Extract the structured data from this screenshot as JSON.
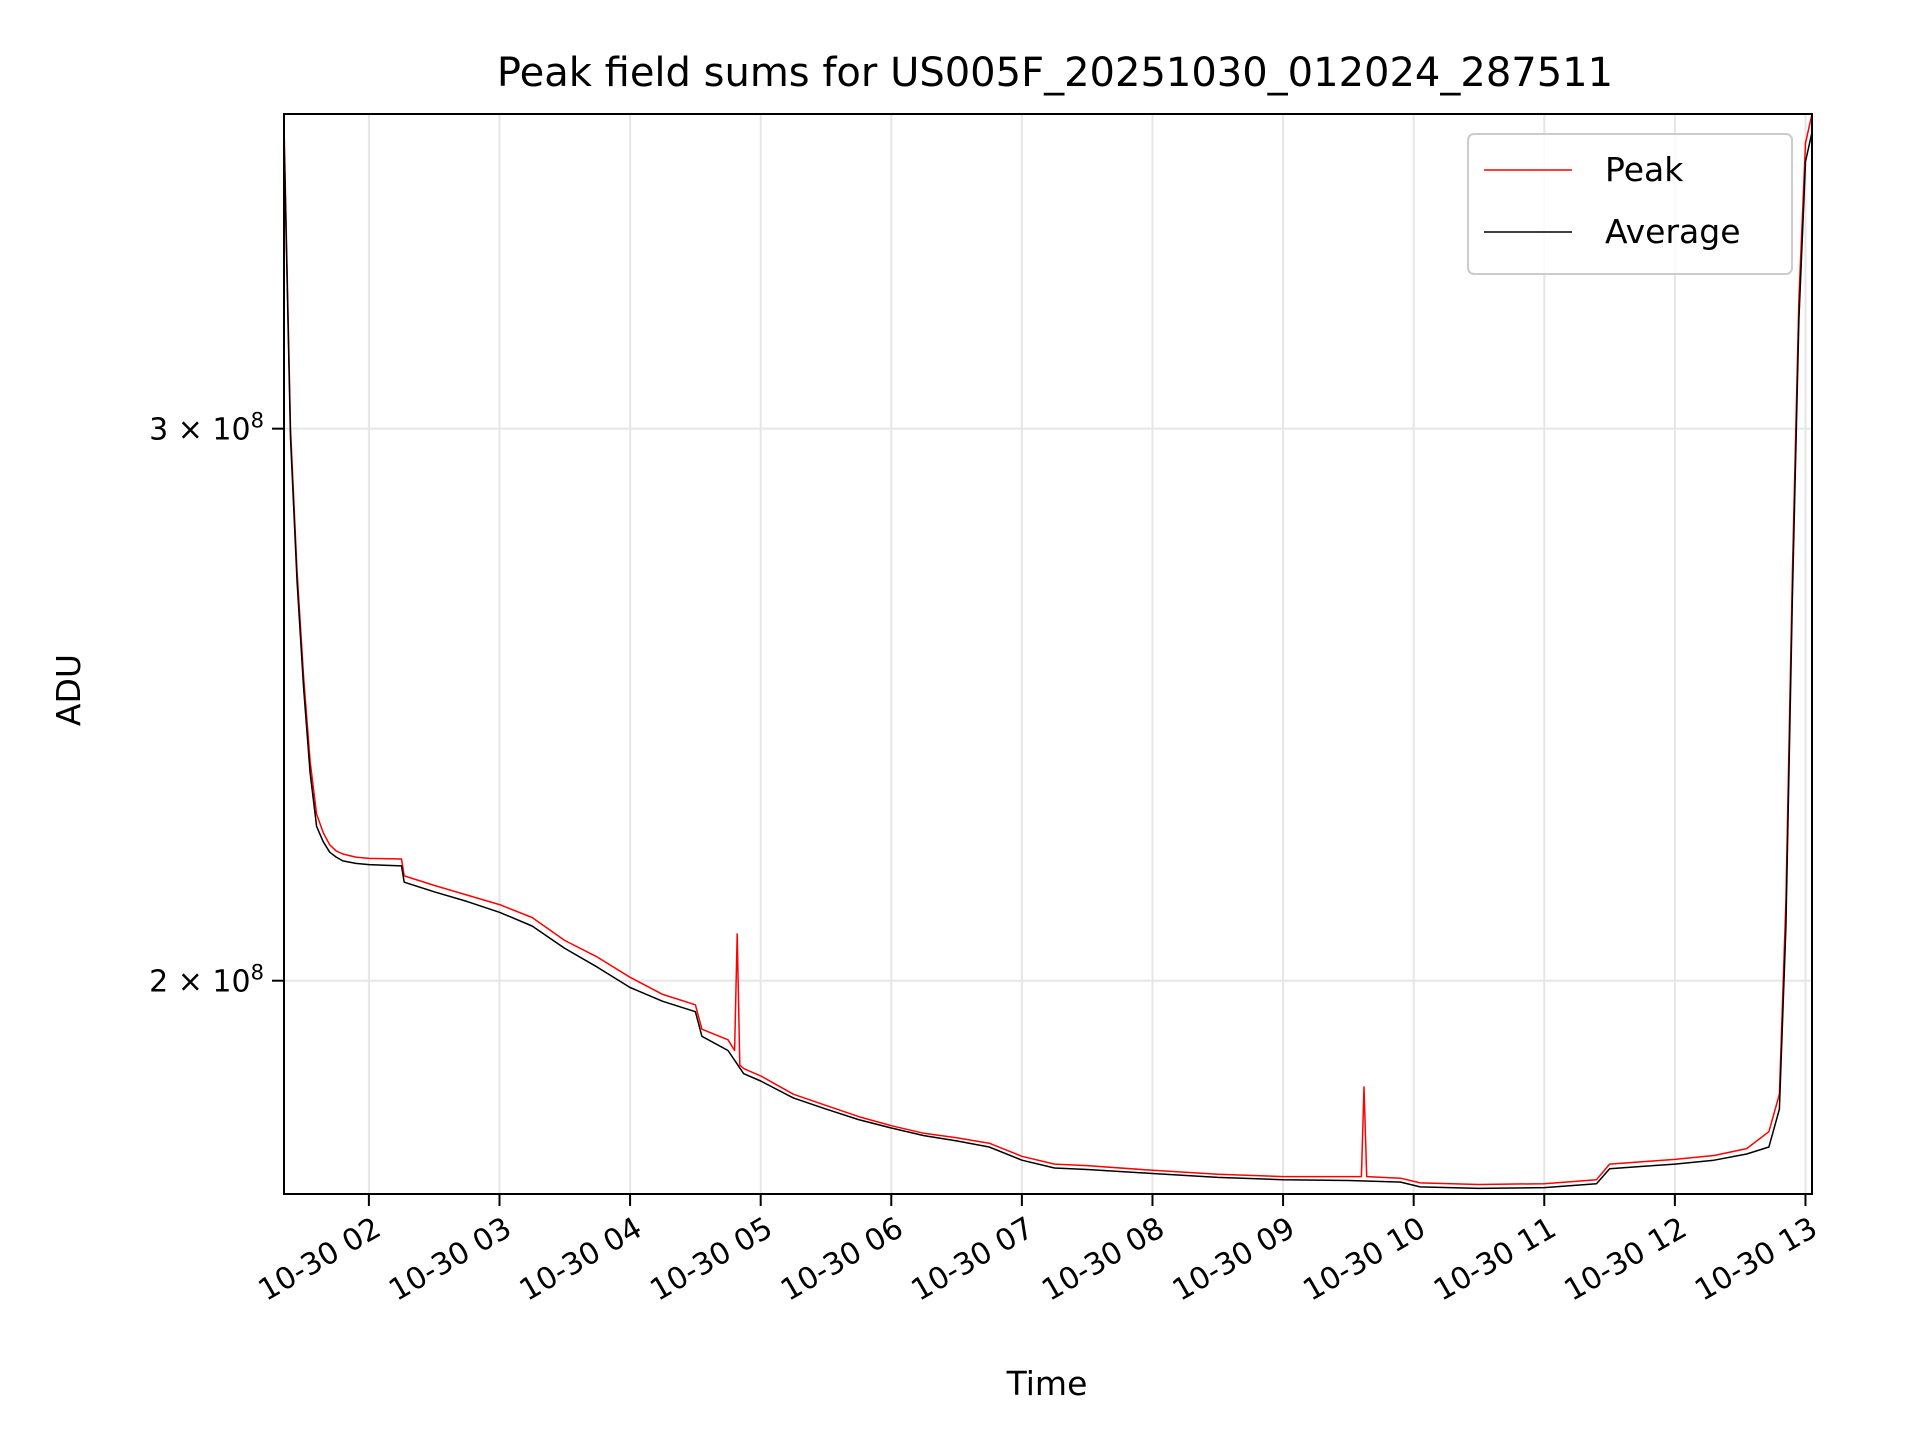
{
  "chart_data": {
    "type": "line",
    "title": "Peak field sums for US005F_20251030_012024_287511",
    "xlabel": "Time",
    "ylabel": "ADU",
    "y_scale": "log",
    "ylim": [
      171000000,
      378000000
    ],
    "xlim": [
      1.35,
      13.05
    ],
    "grid": true,
    "legend_position": "top-right",
    "x_ticks": [
      {
        "value": 2,
        "label": "10-30 02"
      },
      {
        "value": 3,
        "label": "10-30 03"
      },
      {
        "value": 4,
        "label": "10-30 04"
      },
      {
        "value": 5,
        "label": "10-30 05"
      },
      {
        "value": 6,
        "label": "10-30 06"
      },
      {
        "value": 7,
        "label": "10-30 07"
      },
      {
        "value": 8,
        "label": "10-30 08"
      },
      {
        "value": 9,
        "label": "10-30 09"
      },
      {
        "value": 10,
        "label": "10-30 10"
      },
      {
        "value": 11,
        "label": "10-30 11"
      },
      {
        "value": 12,
        "label": "10-30 12"
      },
      {
        "value": 13,
        "label": "10-30 13"
      }
    ],
    "y_ticks": [
      {
        "value": 200000000,
        "base": "2 × 10",
        "exp": "8"
      },
      {
        "value": 300000000,
        "base": "3 × 10",
        "exp": "8"
      }
    ],
    "series": [
      {
        "name": "Peak",
        "color": "#ff0000",
        "x": [
          1.35,
          1.4,
          1.45,
          1.5,
          1.55,
          1.6,
          1.65,
          1.7,
          1.75,
          1.8,
          1.9,
          2.0,
          2.25,
          2.27,
          2.5,
          2.75,
          3.0,
          3.25,
          3.5,
          3.75,
          4.0,
          4.25,
          4.5,
          4.55,
          4.75,
          4.8,
          4.82,
          4.84,
          4.87,
          5.0,
          5.25,
          5.5,
          5.75,
          6.0,
          6.25,
          6.5,
          6.75,
          7.0,
          7.25,
          7.5,
          8.0,
          8.5,
          9.0,
          9.5,
          9.6,
          9.62,
          9.64,
          9.9,
          10.05,
          10.5,
          11.0,
          11.4,
          11.5,
          11.75,
          12.0,
          12.3,
          12.55,
          12.72,
          12.8,
          12.85,
          12.9,
          12.95,
          13.0,
          13.05
        ],
        "values": [
          375000000,
          300000000,
          270000000,
          250000000,
          235000000,
          226000000,
          223000000,
          221000000,
          220000000,
          219500000,
          219000000,
          218800000,
          218700000,
          216000000,
          214500000,
          213000000,
          211500000,
          209500000,
          206000000,
          203500000,
          200500000,
          198000000,
          196500000,
          193000000,
          191500000,
          190000000,
          207000000,
          188000000,
          187500000,
          186500000,
          184000000,
          182500000,
          181000000,
          179800000,
          178800000,
          178200000,
          177500000,
          175800000,
          174800000,
          174600000,
          174000000,
          173500000,
          173200000,
          173200000,
          173200000,
          185000000,
          173200000,
          173000000,
          172400000,
          172200000,
          172300000,
          172800000,
          174800000,
          175100000,
          175400000,
          175900000,
          176800000,
          179000000,
          184000000,
          212000000,
          270000000,
          330000000,
          370000000,
          378000000
        ]
      },
      {
        "name": "Average",
        "color": "#000000",
        "x": [
          1.35,
          1.4,
          1.45,
          1.5,
          1.55,
          1.6,
          1.65,
          1.7,
          1.75,
          1.8,
          1.9,
          2.0,
          2.25,
          2.27,
          2.5,
          2.75,
          3.0,
          3.25,
          3.5,
          3.75,
          4.0,
          4.25,
          4.5,
          4.55,
          4.75,
          4.87,
          5.0,
          5.25,
          5.5,
          5.75,
          6.0,
          6.25,
          6.5,
          6.75,
          7.0,
          7.25,
          7.5,
          8.0,
          8.5,
          9.0,
          9.5,
          9.9,
          10.05,
          10.5,
          11.0,
          11.4,
          11.5,
          11.75,
          12.0,
          12.3,
          12.55,
          12.72,
          12.8,
          12.85,
          12.9,
          12.95,
          13.0,
          13.05
        ],
        "values": [
          372000000,
          298000000,
          268000000,
          248000000,
          233000000,
          224000000,
          221500000,
          219800000,
          219000000,
          218400000,
          218000000,
          217800000,
          217600000,
          215000000,
          213500000,
          212000000,
          210300000,
          208200000,
          204800000,
          202000000,
          199000000,
          197000000,
          195500000,
          192000000,
          190000000,
          186800000,
          185800000,
          183500000,
          182000000,
          180600000,
          179500000,
          178500000,
          177800000,
          177000000,
          175300000,
          174300000,
          174100000,
          173600000,
          173100000,
          172800000,
          172700000,
          172500000,
          171900000,
          171700000,
          171800000,
          172300000,
          174200000,
          174500000,
          174800000,
          175300000,
          176100000,
          177000000,
          182000000,
          208000000,
          265000000,
          325000000,
          365000000,
          373000000
        ]
      }
    ]
  }
}
